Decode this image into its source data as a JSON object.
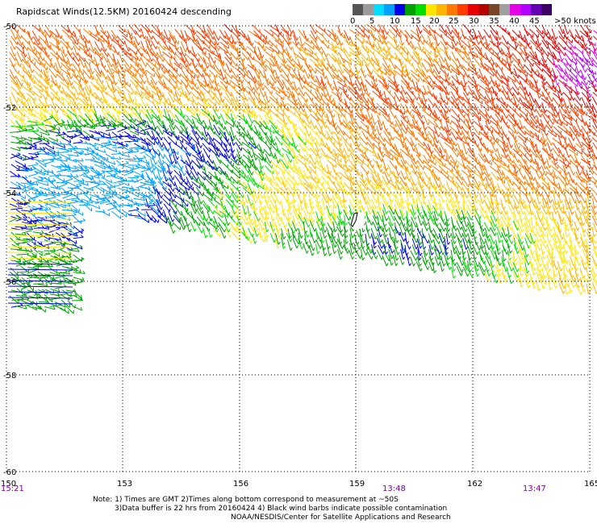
{
  "title": "Rapidscat Winds(12.5KM) 20160424 descending",
  "legend": {
    "colors": [
      "#555555",
      "#9b9b9b",
      "#00ddff",
      "#00a0ff",
      "#0000e6",
      "#00a000",
      "#00e000",
      "#ffe600",
      "#ffb400",
      "#ff7800",
      "#ff3c00",
      "#e60000",
      "#b40000",
      "#784628",
      "#a0a0a0",
      "#e600e6",
      "#b400ff",
      "#6400b4",
      "#3c0064"
    ],
    "labels": [
      "0",
      "5",
      "10",
      "15",
      "20",
      "25",
      "30",
      "35",
      "40",
      "45",
      ">50 knots"
    ]
  },
  "map": {
    "lon_ticks": [
      "150",
      "153",
      "156",
      "159",
      "162",
      "165"
    ],
    "lat_ticks": [
      "-50",
      "-52",
      "-54",
      "-56",
      "-58",
      "-60"
    ],
    "time_labels": [
      "15:21",
      "13:48",
      "13:47"
    ]
  },
  "notes": [
    "Note: 1) Times are GMT 2)Times along bottom correspond to measurement at ~50S",
    "3)Data buffer is 22 hrs from 20160424 4) Black wind barbs indicate possible contamination",
    "NOAA/NESDIS/Center for Satellite Applications and Research"
  ]
}
